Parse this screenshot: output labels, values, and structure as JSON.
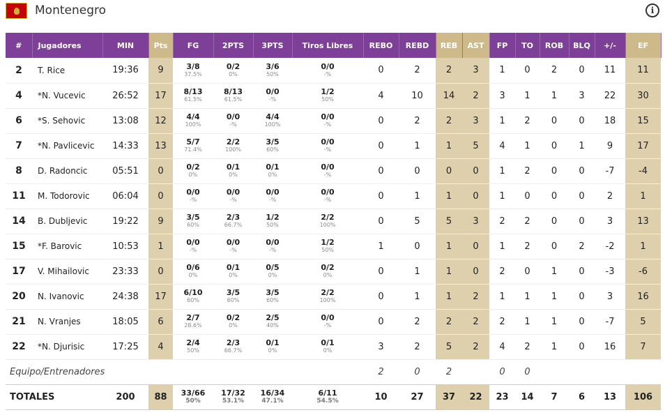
{
  "team": {
    "name": "Montenegro",
    "flag_icon": "montenegro-flag-icon",
    "info_icon": "info-icon"
  },
  "columns": [
    "#",
    "Jugadores",
    "MIN",
    "Pts",
    "FG",
    "2PTS",
    "3PTS",
    "Tiros Libres",
    "REBO",
    "REBD",
    "REB",
    "AST",
    "FP",
    "TO",
    "ROB",
    "BLQ",
    "+/-",
    "EF"
  ],
  "players": [
    {
      "num": "2",
      "name": "T. Rice",
      "min": "19:36",
      "pts": "9",
      "fg": "3/8",
      "fg_pct": "37.5%",
      "p2": "0/2",
      "p2_pct": "0%",
      "p3": "3/6",
      "p3_pct": "50%",
      "ft": "0/0",
      "ft_pct": "-%",
      "rebo": "0",
      "rebd": "2",
      "reb": "2",
      "ast": "3",
      "fp": "1",
      "to": "0",
      "rob": "2",
      "blq": "0",
      "pm": "11",
      "ef": "11"
    },
    {
      "num": "4",
      "name": "*N. Vucevic",
      "min": "26:52",
      "pts": "17",
      "fg": "8/13",
      "fg_pct": "61.5%",
      "p2": "8/13",
      "p2_pct": "61.5%",
      "p3": "0/0",
      "p3_pct": "-%",
      "ft": "1/2",
      "ft_pct": "50%",
      "rebo": "4",
      "rebd": "10",
      "reb": "14",
      "ast": "2",
      "fp": "3",
      "to": "1",
      "rob": "1",
      "blq": "3",
      "pm": "22",
      "ef": "30"
    },
    {
      "num": "6",
      "name": "*S. Sehovic",
      "min": "13:08",
      "pts": "12",
      "fg": "4/4",
      "fg_pct": "100%",
      "p2": "0/0",
      "p2_pct": "-%",
      "p3": "4/4",
      "p3_pct": "100%",
      "ft": "0/0",
      "ft_pct": "-%",
      "rebo": "0",
      "rebd": "2",
      "reb": "2",
      "ast": "3",
      "fp": "1",
      "to": "2",
      "rob": "0",
      "blq": "0",
      "pm": "18",
      "ef": "15"
    },
    {
      "num": "7",
      "name": "*N. Pavlicevic",
      "min": "14:33",
      "pts": "13",
      "fg": "5/7",
      "fg_pct": "71.4%",
      "p2": "2/2",
      "p2_pct": "100%",
      "p3": "3/5",
      "p3_pct": "60%",
      "ft": "0/0",
      "ft_pct": "-%",
      "rebo": "0",
      "rebd": "1",
      "reb": "1",
      "ast": "5",
      "fp": "4",
      "to": "1",
      "rob": "0",
      "blq": "1",
      "pm": "9",
      "ef": "17"
    },
    {
      "num": "8",
      "name": "D. Radoncic",
      "min": "05:51",
      "pts": "0",
      "fg": "0/2",
      "fg_pct": "0%",
      "p2": "0/1",
      "p2_pct": "0%",
      "p3": "0/1",
      "p3_pct": "0%",
      "ft": "0/0",
      "ft_pct": "-%",
      "rebo": "0",
      "rebd": "0",
      "reb": "0",
      "ast": "0",
      "fp": "1",
      "to": "2",
      "rob": "0",
      "blq": "0",
      "pm": "-7",
      "ef": "-4"
    },
    {
      "num": "11",
      "name": "M. Todorovic",
      "min": "06:04",
      "pts": "0",
      "fg": "0/0",
      "fg_pct": "-%",
      "p2": "0/0",
      "p2_pct": "-%",
      "p3": "0/0",
      "p3_pct": "-%",
      "ft": "0/0",
      "ft_pct": "-%",
      "rebo": "0",
      "rebd": "1",
      "reb": "1",
      "ast": "0",
      "fp": "1",
      "to": "0",
      "rob": "0",
      "blq": "0",
      "pm": "2",
      "ef": "1"
    },
    {
      "num": "14",
      "name": "B. Dubljevic",
      "min": "19:22",
      "pts": "9",
      "fg": "3/5",
      "fg_pct": "60%",
      "p2": "2/3",
      "p2_pct": "66.7%",
      "p3": "1/2",
      "p3_pct": "50%",
      "ft": "2/2",
      "ft_pct": "100%",
      "rebo": "0",
      "rebd": "5",
      "reb": "5",
      "ast": "3",
      "fp": "2",
      "to": "2",
      "rob": "0",
      "blq": "0",
      "pm": "3",
      "ef": "13"
    },
    {
      "num": "15",
      "name": "*F. Barovic",
      "min": "10:53",
      "pts": "1",
      "fg": "0/0",
      "fg_pct": "-%",
      "p2": "0/0",
      "p2_pct": "-%",
      "p3": "0/0",
      "p3_pct": "-%",
      "ft": "1/2",
      "ft_pct": "50%",
      "rebo": "1",
      "rebd": "0",
      "reb": "1",
      "ast": "0",
      "fp": "1",
      "to": "2",
      "rob": "0",
      "blq": "2",
      "pm": "-2",
      "ef": "1"
    },
    {
      "num": "17",
      "name": "V. Mihailovic",
      "min": "23:33",
      "pts": "0",
      "fg": "0/6",
      "fg_pct": "0%",
      "p2": "0/1",
      "p2_pct": "0%",
      "p3": "0/5",
      "p3_pct": "0%",
      "ft": "0/2",
      "ft_pct": "0%",
      "rebo": "0",
      "rebd": "1",
      "reb": "1",
      "ast": "0",
      "fp": "2",
      "to": "0",
      "rob": "1",
      "blq": "0",
      "pm": "-3",
      "ef": "-6"
    },
    {
      "num": "20",
      "name": "N. Ivanovic",
      "min": "24:38",
      "pts": "17",
      "fg": "6/10",
      "fg_pct": "60%",
      "p2": "3/5",
      "p2_pct": "60%",
      "p3": "3/5",
      "p3_pct": "60%",
      "ft": "2/2",
      "ft_pct": "100%",
      "rebo": "0",
      "rebd": "1",
      "reb": "1",
      "ast": "2",
      "fp": "1",
      "to": "1",
      "rob": "1",
      "blq": "0",
      "pm": "3",
      "ef": "16"
    },
    {
      "num": "21",
      "name": "N. Vranjes",
      "min": "18:05",
      "pts": "6",
      "fg": "2/7",
      "fg_pct": "28.6%",
      "p2": "0/2",
      "p2_pct": "0%",
      "p3": "2/5",
      "p3_pct": "40%",
      "ft": "0/0",
      "ft_pct": "-%",
      "rebo": "0",
      "rebd": "2",
      "reb": "2",
      "ast": "2",
      "fp": "2",
      "to": "1",
      "rob": "1",
      "blq": "0",
      "pm": "-7",
      "ef": "5"
    },
    {
      "num": "22",
      "name": "*N. Djurisic",
      "min": "17:25",
      "pts": "4",
      "fg": "2/4",
      "fg_pct": "50%",
      "p2": "2/3",
      "p2_pct": "66.7%",
      "p3": "0/1",
      "p3_pct": "0%",
      "ft": "0/1",
      "ft_pct": "0%",
      "rebo": "3",
      "rebd": "2",
      "reb": "5",
      "ast": "2",
      "fp": "4",
      "to": "2",
      "rob": "1",
      "blq": "0",
      "pm": "16",
      "ef": "7"
    }
  ],
  "equipo": {
    "label": "Equipo/Entrenadores",
    "rebo": "2",
    "rebd": "0",
    "reb": "2",
    "fp": "0",
    "to": "0"
  },
  "totals": {
    "label": "TOTALES",
    "min": "200",
    "pts": "88",
    "fg": "33/66",
    "fg_pct": "50%",
    "p2": "17/32",
    "p2_pct": "53.1%",
    "p3": "16/34",
    "p3_pct": "47.1%",
    "ft": "6/11",
    "ft_pct": "54.5%",
    "rebo": "10",
    "rebd": "27",
    "reb": "37",
    "ast": "22",
    "fp": "23",
    "to": "14",
    "rob": "7",
    "blq": "6",
    "pm": "13",
    "ef": "106"
  },
  "colors": {
    "header_bg": "#7d3f98",
    "highlight_header": "#cdb98a",
    "highlight_cell": "#dfd0ad",
    "flag_red": "#c40308",
    "flag_gold": "#d4af37"
  }
}
